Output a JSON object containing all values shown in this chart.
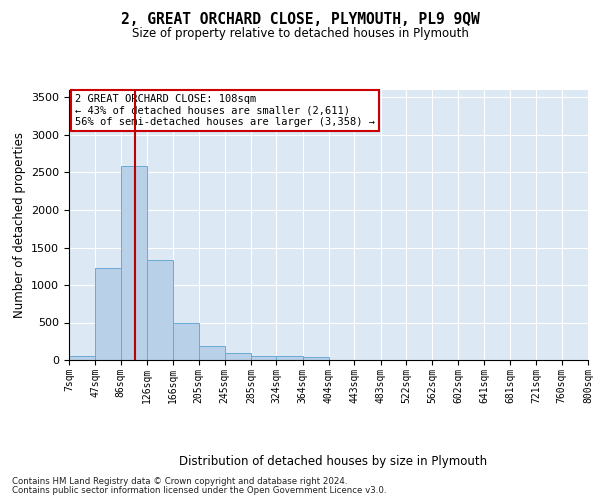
{
  "title": "2, GREAT ORCHARD CLOSE, PLYMOUTH, PL9 9QW",
  "subtitle": "Size of property relative to detached houses in Plymouth",
  "xlabel": "Distribution of detached houses by size in Plymouth",
  "ylabel": "Number of detached properties",
  "bar_color": "#b8d0e8",
  "bar_edge_color": "#6aaad4",
  "bg_color": "#dce9f5",
  "fig_bg": "#ffffff",
  "grid_color": "#ffffff",
  "bin_edges": [
    7,
    47,
    86,
    126,
    166,
    205,
    245,
    285,
    324,
    364,
    404,
    443,
    483,
    522,
    562,
    602,
    641,
    681,
    721,
    760,
    800
  ],
  "bin_labels": [
    "7sqm",
    "47sqm",
    "86sqm",
    "126sqm",
    "166sqm",
    "205sqm",
    "245sqm",
    "285sqm",
    "324sqm",
    "364sqm",
    "404sqm",
    "443sqm",
    "483sqm",
    "522sqm",
    "562sqm",
    "602sqm",
    "641sqm",
    "681sqm",
    "721sqm",
    "760sqm",
    "800sqm"
  ],
  "bar_heights": [
    60,
    1230,
    2580,
    1340,
    500,
    190,
    100,
    50,
    50,
    40,
    0,
    0,
    0,
    0,
    0,
    0,
    0,
    0,
    0,
    0
  ],
  "property_size": 108,
  "red_line_color": "#bb0000",
  "ann_line1": "2 GREAT ORCHARD CLOSE: 108sqm",
  "ann_line2": "← 43% of detached houses are smaller (2,611)",
  "ann_line3": "56% of semi-detached houses are larger (3,358) →",
  "ann_box_fc": "#ffffff",
  "ann_box_ec": "#cc0000",
  "ylim_max": 3600,
  "yticks": [
    0,
    500,
    1000,
    1500,
    2000,
    2500,
    3000,
    3500
  ],
  "footnote1": "Contains HM Land Registry data © Crown copyright and database right 2024.",
  "footnote2": "Contains public sector information licensed under the Open Government Licence v3.0."
}
